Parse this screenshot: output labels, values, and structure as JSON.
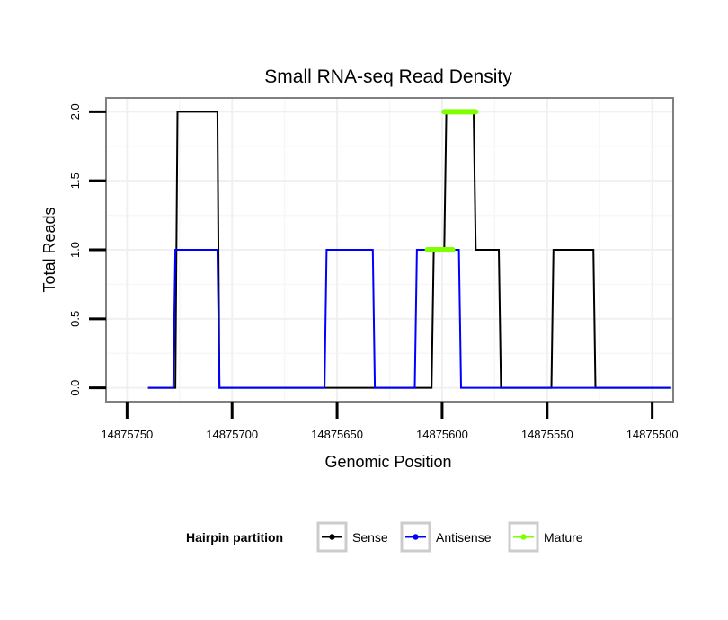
{
  "chart_data": {
    "type": "line",
    "title": "Small RNA-seq Read Density",
    "xlabel": "Genomic Position",
    "ylabel": "Total Reads",
    "x_reversed": true,
    "xlim": [
      14875760,
      14875490
    ],
    "ylim": [
      -0.1,
      2.1
    ],
    "x_ticks": [
      14875750,
      14875700,
      14875650,
      14875600,
      14875550,
      14875500
    ],
    "x_tick_labels": [
      "14875750",
      "14875700",
      "14875650",
      "14875600",
      "14875550",
      "14875500"
    ],
    "y_ticks": [
      0,
      0.5,
      1,
      1.5,
      2
    ],
    "y_tick_labels": [
      "0.0",
      "0.5",
      "1.0",
      "1.5",
      "2.0"
    ],
    "grid": true,
    "legend": {
      "title": "Hairpin partition",
      "position": "bottom",
      "entries": [
        "Sense",
        "Antisense",
        "Mature"
      ]
    },
    "series": [
      {
        "name": "Sense",
        "color": "#000000",
        "x": [
          14875740,
          14875727,
          14875726,
          14875707,
          14875706,
          14875659,
          14875658,
          14875612,
          14875611,
          14875605,
          14875604,
          14875599,
          14875598,
          14875585,
          14875584,
          14875579,
          14875578,
          14875573,
          14875572,
          14875548,
          14875547,
          14875528,
          14875527,
          14875491
        ],
        "y": [
          0,
          0,
          2,
          2,
          0,
          0,
          0,
          0,
          0,
          0,
          1,
          1,
          2,
          2,
          1,
          1,
          1,
          1,
          0,
          0,
          1,
          1,
          0,
          0
        ]
      },
      {
        "name": "Antisense",
        "color": "#0000ff",
        "x": [
          14875740,
          14875728,
          14875727,
          14875707,
          14875706,
          14875656,
          14875655,
          14875633,
          14875632,
          14875613,
          14875612,
          14875592,
          14875591,
          14875491
        ],
        "y": [
          0,
          0,
          1,
          1,
          0,
          0,
          1,
          1,
          0,
          0,
          1,
          1,
          0,
          0
        ]
      },
      {
        "name": "Mature",
        "color": "#7fff00",
        "segments": [
          {
            "x": [
              14875607,
              14875595
            ],
            "y": [
              1,
              1
            ]
          },
          {
            "x": [
              14875599,
              14875584
            ],
            "y": [
              2,
              2
            ]
          }
        ]
      }
    ]
  }
}
